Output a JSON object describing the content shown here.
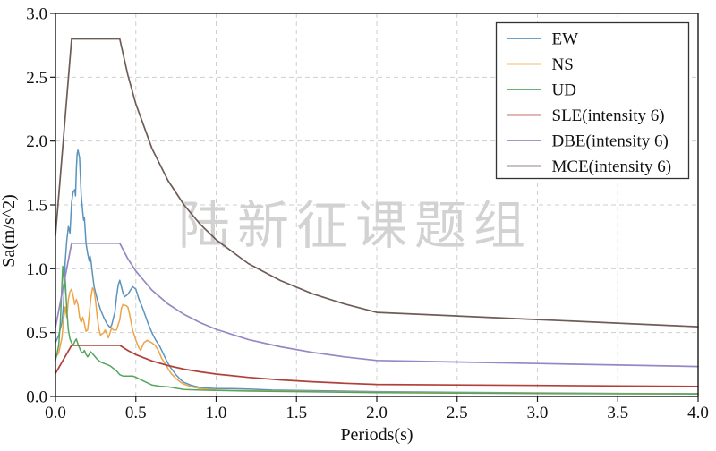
{
  "figure": {
    "watermark": "陆新征课题组",
    "background": "#ffffff"
  },
  "chart_data": {
    "type": "line",
    "title": "",
    "xlabel": "Periods(s)",
    "ylabel": "Sa(m/s^2)",
    "xlim": [
      0,
      4
    ],
    "ylim": [
      0,
      3
    ],
    "xtick_labels": [
      "0.0",
      "0.5",
      "1.0",
      "1.5",
      "2.0",
      "2.5",
      "3.0",
      "3.5",
      "4.0"
    ],
    "ytick_labels": [
      "0.0",
      "0.5",
      "1.0",
      "1.5",
      "2.0",
      "2.5",
      "3.0"
    ],
    "grid": "dashed",
    "grid_color": "#cfcfcf",
    "spine_color": "#1a1a1a",
    "legend_position": "upper-right",
    "series": [
      {
        "id": "ew",
        "name": "EW",
        "color": "#5b93bd",
        "width": 1.5,
        "points": [
          [
            0,
            0.42
          ],
          [
            0.02,
            0.48
          ],
          [
            0.04,
            0.58
          ],
          [
            0.05,
            0.72
          ],
          [
            0.06,
            1.05
          ],
          [
            0.07,
            1.22
          ],
          [
            0.08,
            1.33
          ],
          [
            0.09,
            1.28
          ],
          [
            0.1,
            1.52
          ],
          [
            0.11,
            1.6
          ],
          [
            0.12,
            1.62
          ],
          [
            0.125,
            1.57
          ],
          [
            0.13,
            1.78
          ],
          [
            0.135,
            1.9
          ],
          [
            0.14,
            1.93
          ],
          [
            0.15,
            1.87
          ],
          [
            0.16,
            1.58
          ],
          [
            0.17,
            1.44
          ],
          [
            0.175,
            1.38
          ],
          [
            0.18,
            1.4
          ],
          [
            0.19,
            1.2
          ],
          [
            0.2,
            1.12
          ],
          [
            0.21,
            1.06
          ],
          [
            0.215,
            1.1
          ],
          [
            0.22,
            1.07
          ],
          [
            0.23,
            0.96
          ],
          [
            0.24,
            0.86
          ],
          [
            0.26,
            0.76
          ],
          [
            0.28,
            0.68
          ],
          [
            0.3,
            0.62
          ],
          [
            0.32,
            0.57
          ],
          [
            0.34,
            0.54
          ],
          [
            0.35,
            0.56
          ],
          [
            0.37,
            0.66
          ],
          [
            0.38,
            0.78
          ],
          [
            0.39,
            0.87
          ],
          [
            0.4,
            0.91
          ],
          [
            0.41,
            0.86
          ],
          [
            0.42,
            0.81
          ],
          [
            0.43,
            0.78
          ],
          [
            0.45,
            0.8
          ],
          [
            0.47,
            0.84
          ],
          [
            0.48,
            0.86
          ],
          [
            0.5,
            0.84
          ],
          [
            0.52,
            0.76
          ],
          [
            0.54,
            0.7
          ],
          [
            0.56,
            0.63
          ],
          [
            0.58,
            0.56
          ],
          [
            0.6,
            0.5
          ],
          [
            0.62,
            0.45
          ],
          [
            0.65,
            0.39
          ],
          [
            0.68,
            0.31
          ],
          [
            0.7,
            0.26
          ],
          [
            0.72,
            0.22
          ],
          [
            0.75,
            0.17
          ],
          [
            0.78,
            0.13
          ],
          [
            0.8,
            0.11
          ],
          [
            0.85,
            0.085
          ],
          [
            0.9,
            0.07
          ],
          [
            1,
            0.062
          ],
          [
            1.1,
            0.062
          ],
          [
            1.2,
            0.058
          ],
          [
            1.35,
            0.05
          ],
          [
            1.5,
            0.048
          ],
          [
            2,
            0.038
          ],
          [
            2.5,
            0.032
          ],
          [
            3,
            0.028
          ],
          [
            3.5,
            0.024
          ],
          [
            4,
            0.022
          ]
        ]
      },
      {
        "id": "ns",
        "name": "NS",
        "color": "#eca448",
        "width": 1.5,
        "points": [
          [
            0,
            0.3
          ],
          [
            0.02,
            0.34
          ],
          [
            0.04,
            0.46
          ],
          [
            0.05,
            0.6
          ],
          [
            0.06,
            0.7
          ],
          [
            0.07,
            0.62
          ],
          [
            0.08,
            0.76
          ],
          [
            0.09,
            0.82
          ],
          [
            0.1,
            0.84
          ],
          [
            0.11,
            0.79
          ],
          [
            0.12,
            0.72
          ],
          [
            0.13,
            0.76
          ],
          [
            0.14,
            0.72
          ],
          [
            0.15,
            0.62
          ],
          [
            0.16,
            0.58
          ],
          [
            0.17,
            0.62
          ],
          [
            0.18,
            0.57
          ],
          [
            0.19,
            0.51
          ],
          [
            0.2,
            0.52
          ],
          [
            0.21,
            0.64
          ],
          [
            0.22,
            0.77
          ],
          [
            0.23,
            0.85
          ],
          [
            0.24,
            0.83
          ],
          [
            0.25,
            0.74
          ],
          [
            0.26,
            0.62
          ],
          [
            0.27,
            0.53
          ],
          [
            0.28,
            0.48
          ],
          [
            0.3,
            0.5
          ],
          [
            0.31,
            0.52
          ],
          [
            0.33,
            0.46
          ],
          [
            0.35,
            0.54
          ],
          [
            0.36,
            0.52
          ],
          [
            0.38,
            0.52
          ],
          [
            0.4,
            0.6
          ],
          [
            0.41,
            0.69
          ],
          [
            0.42,
            0.72
          ],
          [
            0.44,
            0.71
          ],
          [
            0.45,
            0.7
          ],
          [
            0.46,
            0.65
          ],
          [
            0.48,
            0.52
          ],
          [
            0.5,
            0.44
          ],
          [
            0.52,
            0.38
          ],
          [
            0.53,
            0.36
          ],
          [
            0.55,
            0.42
          ],
          [
            0.57,
            0.44
          ],
          [
            0.6,
            0.42
          ],
          [
            0.62,
            0.4
          ],
          [
            0.64,
            0.36
          ],
          [
            0.66,
            0.3
          ],
          [
            0.68,
            0.26
          ],
          [
            0.7,
            0.22
          ],
          [
            0.72,
            0.18
          ],
          [
            0.75,
            0.14
          ],
          [
            0.78,
            0.11
          ],
          [
            0.8,
            0.095
          ],
          [
            0.85,
            0.075
          ],
          [
            0.9,
            0.06
          ],
          [
            1,
            0.05
          ],
          [
            1.2,
            0.045
          ],
          [
            1.5,
            0.04
          ],
          [
            2,
            0.032
          ],
          [
            2.5,
            0.028
          ],
          [
            3,
            0.025
          ],
          [
            3.5,
            0.022
          ],
          [
            4,
            0.02
          ]
        ]
      },
      {
        "id": "ud",
        "name": "UD",
        "color": "#55a65c",
        "width": 1.5,
        "points": [
          [
            0,
            0.28
          ],
          [
            0.02,
            0.4
          ],
          [
            0.03,
            0.58
          ],
          [
            0.04,
            0.88
          ],
          [
            0.045,
            1.02
          ],
          [
            0.05,
            0.96
          ],
          [
            0.055,
            0.86
          ],
          [
            0.06,
            0.93
          ],
          [
            0.07,
            0.68
          ],
          [
            0.08,
            0.52
          ],
          [
            0.09,
            0.45
          ],
          [
            0.1,
            0.42
          ],
          [
            0.11,
            0.4
          ],
          [
            0.12,
            0.43
          ],
          [
            0.13,
            0.45
          ],
          [
            0.14,
            0.41
          ],
          [
            0.15,
            0.38
          ],
          [
            0.16,
            0.35
          ],
          [
            0.17,
            0.34
          ],
          [
            0.18,
            0.36
          ],
          [
            0.19,
            0.33
          ],
          [
            0.2,
            0.31
          ],
          [
            0.22,
            0.35
          ],
          [
            0.24,
            0.32
          ],
          [
            0.26,
            0.29
          ],
          [
            0.28,
            0.27
          ],
          [
            0.3,
            0.26
          ],
          [
            0.32,
            0.25
          ],
          [
            0.34,
            0.24
          ],
          [
            0.36,
            0.22
          ],
          [
            0.38,
            0.2
          ],
          [
            0.4,
            0.17
          ],
          [
            0.42,
            0.16
          ],
          [
            0.45,
            0.16
          ],
          [
            0.48,
            0.16
          ],
          [
            0.5,
            0.15
          ],
          [
            0.55,
            0.12
          ],
          [
            0.6,
            0.09
          ],
          [
            0.65,
            0.08
          ],
          [
            0.7,
            0.075
          ],
          [
            0.8,
            0.055
          ],
          [
            0.9,
            0.05
          ],
          [
            1,
            0.048
          ],
          [
            1.2,
            0.042
          ],
          [
            1.5,
            0.038
          ],
          [
            2,
            0.03
          ],
          [
            2.5,
            0.026
          ],
          [
            3,
            0.023
          ],
          [
            3.5,
            0.021
          ],
          [
            4,
            0.02
          ]
        ]
      },
      {
        "id": "sle",
        "name": "SLE(intensity 6)",
        "color": "#b2403a",
        "width": 1.7,
        "points": [
          [
            0,
            0.18
          ],
          [
            0.1,
            0.4
          ],
          [
            0.4,
            0.4
          ],
          [
            0.45,
            0.36
          ],
          [
            0.5,
            0.327
          ],
          [
            0.55,
            0.303
          ],
          [
            0.6,
            0.278
          ],
          [
            0.7,
            0.242
          ],
          [
            0.8,
            0.214
          ],
          [
            0.9,
            0.193
          ],
          [
            1,
            0.175
          ],
          [
            1.2,
            0.149
          ],
          [
            1.4,
            0.13
          ],
          [
            1.6,
            0.115
          ],
          [
            1.8,
            0.103
          ],
          [
            2,
            0.094
          ],
          [
            2.5,
            0.09
          ],
          [
            3,
            0.086
          ],
          [
            3.5,
            0.082
          ],
          [
            4,
            0.078
          ]
        ]
      },
      {
        "id": "dbe",
        "name": "DBE(intensity 6)",
        "color": "#9787c5",
        "width": 1.7,
        "points": [
          [
            0,
            0.54
          ],
          [
            0.1,
            1.2
          ],
          [
            0.4,
            1.2
          ],
          [
            0.45,
            1.079
          ],
          [
            0.5,
            0.982
          ],
          [
            0.55,
            0.908
          ],
          [
            0.6,
            0.833
          ],
          [
            0.7,
            0.725
          ],
          [
            0.8,
            0.643
          ],
          [
            0.9,
            0.578
          ],
          [
            1,
            0.526
          ],
          [
            1.2,
            0.446
          ],
          [
            1.4,
            0.389
          ],
          [
            1.6,
            0.345
          ],
          [
            1.8,
            0.31
          ],
          [
            2,
            0.282
          ],
          [
            2.5,
            0.27
          ],
          [
            3,
            0.258
          ],
          [
            3.5,
            0.246
          ],
          [
            4,
            0.234
          ]
        ]
      },
      {
        "id": "mce",
        "name": "MCE(intensity 6)",
        "color": "#6f5c57",
        "width": 1.7,
        "points": [
          [
            0,
            1.26
          ],
          [
            0.1,
            2.8
          ],
          [
            0.4,
            2.8
          ],
          [
            0.45,
            2.518
          ],
          [
            0.5,
            2.29
          ],
          [
            0.55,
            2.118
          ],
          [
            0.6,
            1.944
          ],
          [
            0.7,
            1.692
          ],
          [
            0.8,
            1.5
          ],
          [
            0.9,
            1.349
          ],
          [
            1,
            1.227
          ],
          [
            1.2,
            1.041
          ],
          [
            1.4,
            0.908
          ],
          [
            1.6,
            0.804
          ],
          [
            1.8,
            0.724
          ],
          [
            2,
            0.658
          ],
          [
            2.5,
            0.63
          ],
          [
            3,
            0.602
          ],
          [
            3.5,
            0.574
          ],
          [
            4,
            0.546
          ]
        ]
      }
    ]
  }
}
